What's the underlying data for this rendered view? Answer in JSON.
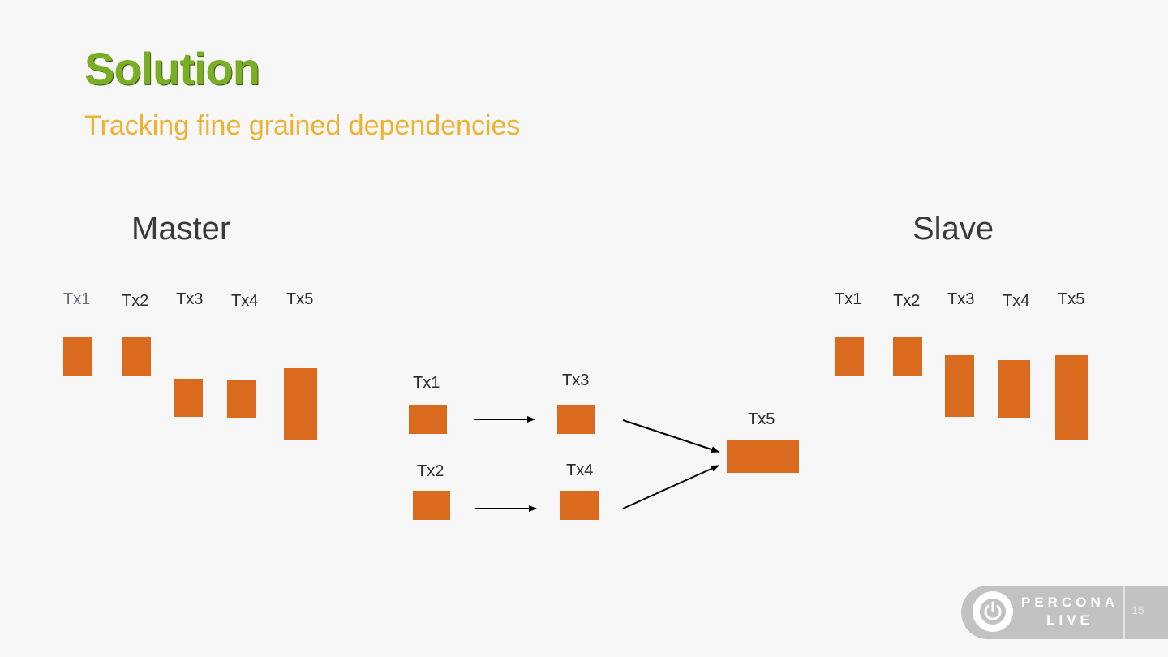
{
  "slide": {
    "title": "Solution",
    "subtitle": "Tracking fine grained dependencies",
    "page_number": "15"
  },
  "master": {
    "heading": "Master",
    "labels": [
      "Tx1",
      "Tx2",
      "Tx3",
      "Tx4",
      "Tx5"
    ]
  },
  "dependency_graph": {
    "labels": {
      "tx1": "Tx1",
      "tx2": "Tx2",
      "tx3": "Tx3",
      "tx4": "Tx4",
      "tx5": "Tx5"
    },
    "edges": [
      [
        "Tx1",
        "Tx3"
      ],
      [
        "Tx2",
        "Tx4"
      ],
      [
        "Tx3",
        "Tx5"
      ],
      [
        "Tx4",
        "Tx5"
      ]
    ]
  },
  "slave": {
    "heading": "Slave",
    "labels": [
      "Tx1",
      "Tx2",
      "Tx3",
      "Tx4",
      "Tx5"
    ]
  },
  "logo": {
    "line1": "PERCONA",
    "line2": "LIVE",
    "icon": "power-icon"
  },
  "colors": {
    "title": "#7aae24",
    "subtitle": "#f0b030",
    "box": "#da6a1e",
    "text": "#3a3a3a"
  }
}
